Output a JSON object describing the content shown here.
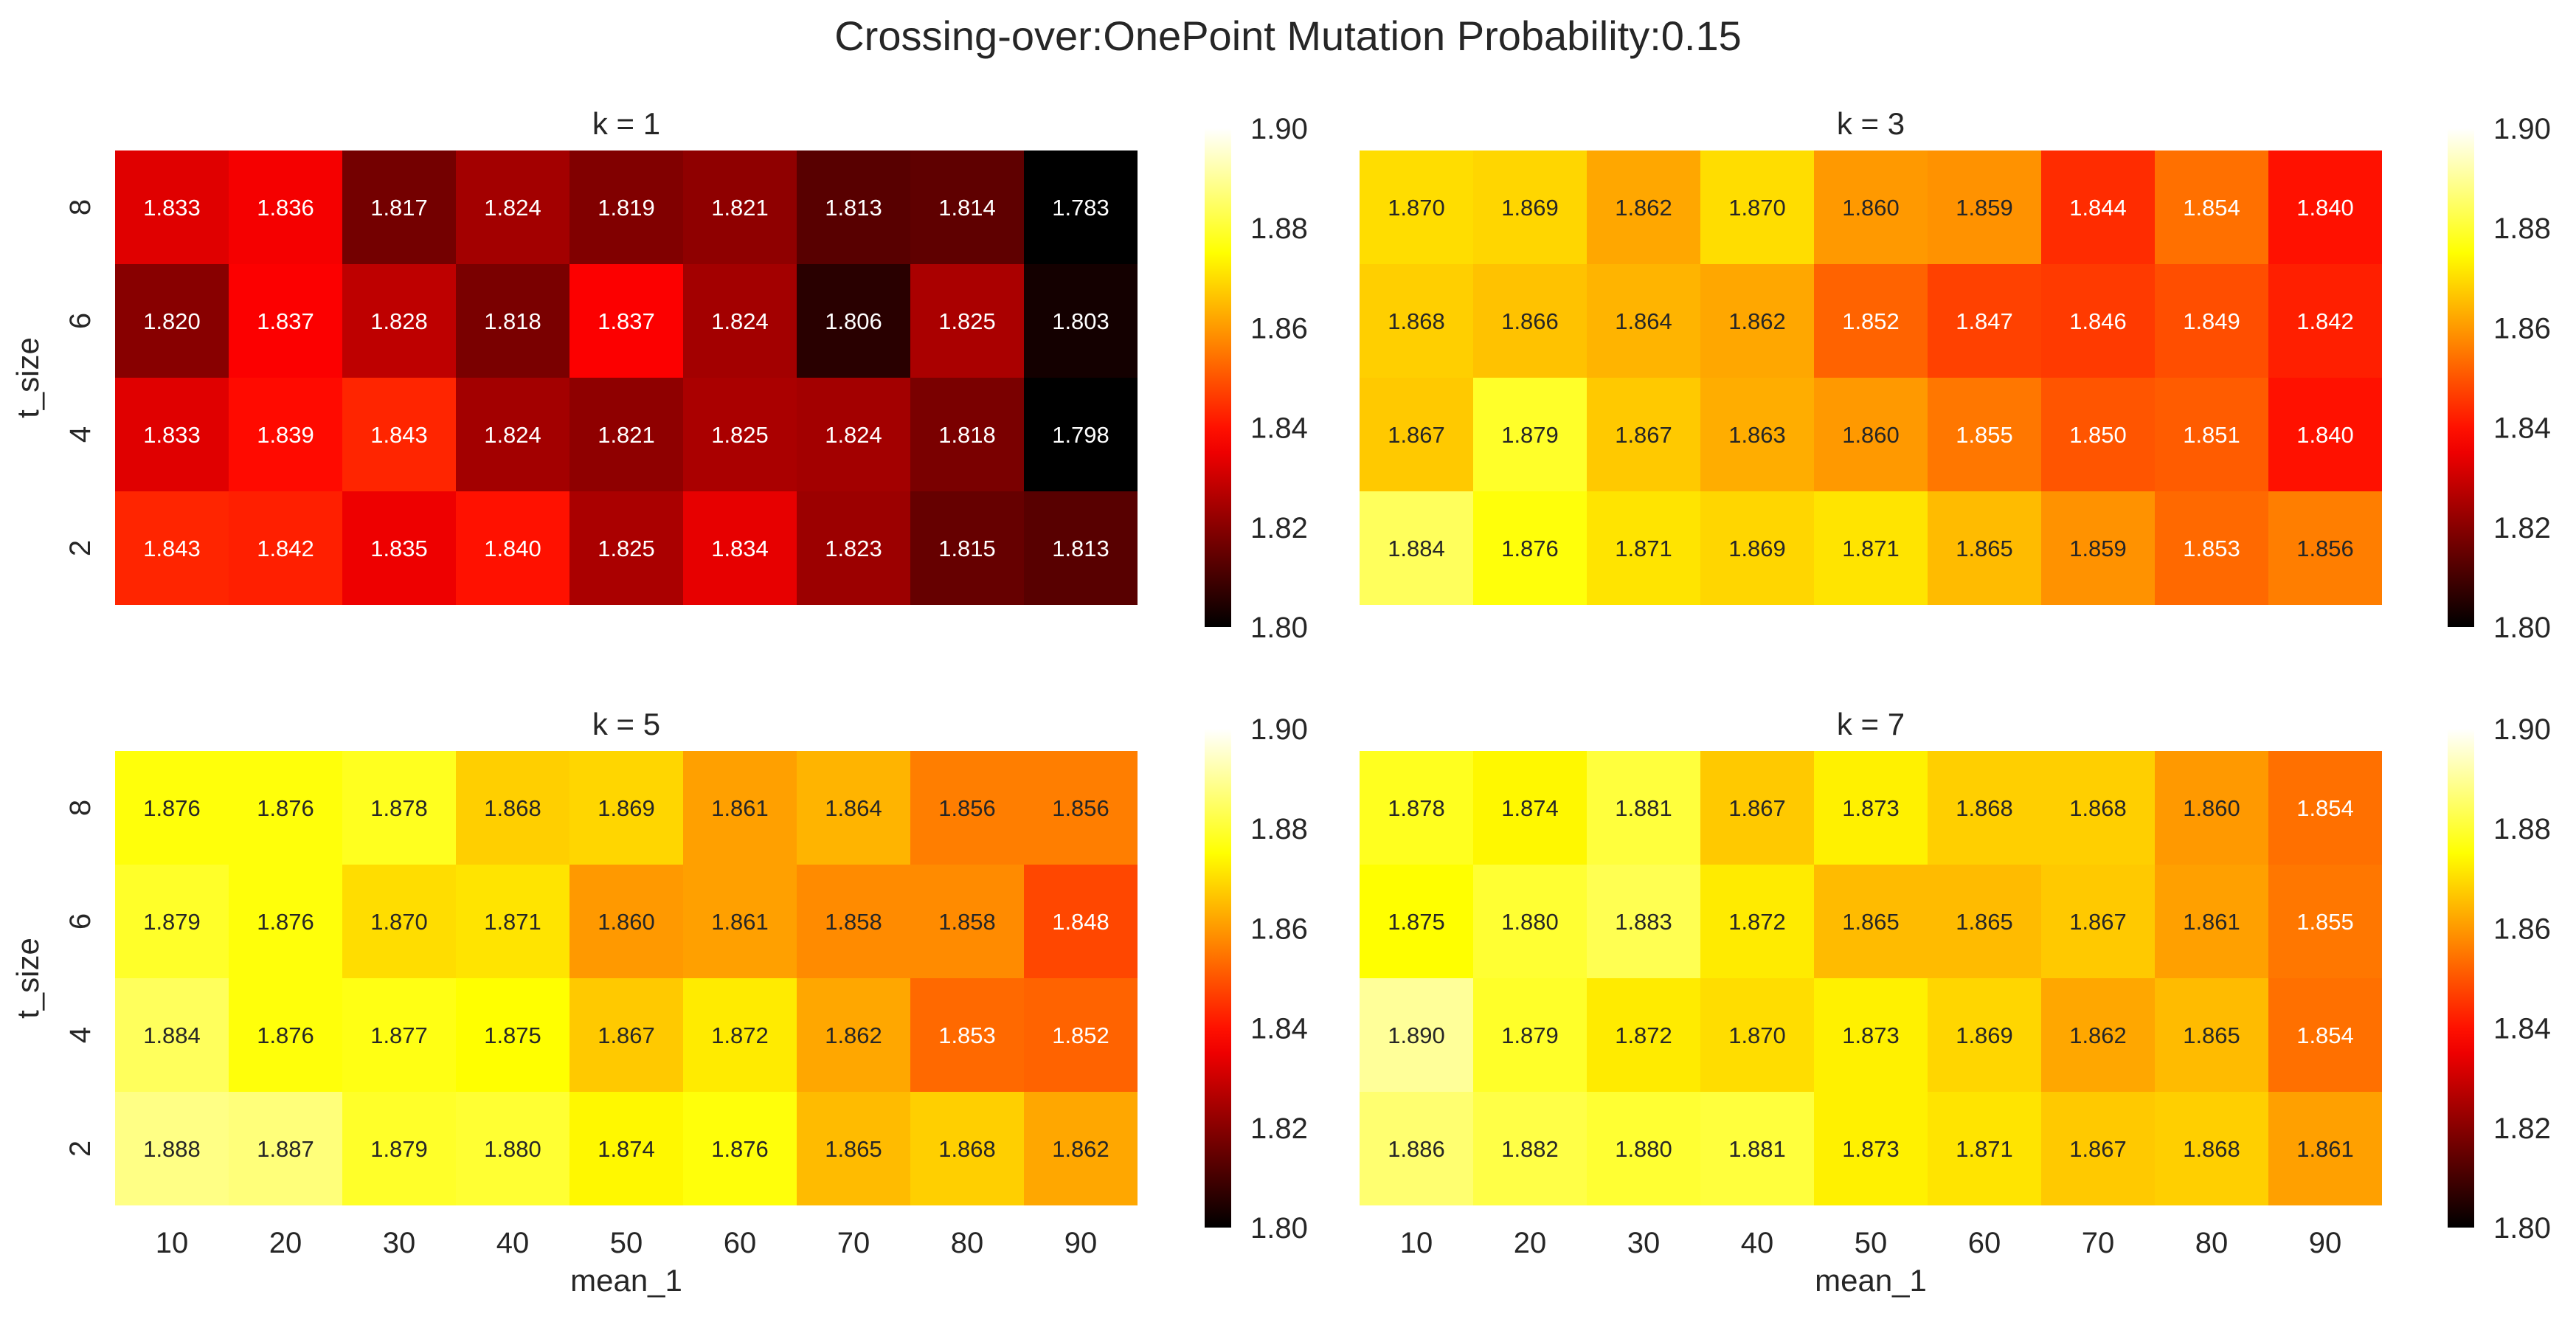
{
  "figure": {
    "title": "Crossing-over:OnePoint Mutation Probability:0.15"
  },
  "colormap": {
    "name": "hot",
    "stops": [
      "#000000",
      "#ff0000",
      "#ffff00",
      "#ffffff"
    ]
  },
  "chart_data": [
    {
      "type": "heatmap",
      "title": "k = 1",
      "xlabel": "",
      "ylabel": "t_size",
      "x_categories": [
        "10",
        "20",
        "30",
        "40",
        "50",
        "60",
        "70",
        "80",
        "90"
      ],
      "y_categories": [
        "8",
        "6",
        "4",
        "2"
      ],
      "values": [
        [
          1.833,
          1.836,
          1.817,
          1.824,
          1.819,
          1.821,
          1.813,
          1.814,
          1.783
        ],
        [
          1.82,
          1.837,
          1.828,
          1.818,
          1.837,
          1.824,
          1.806,
          1.825,
          1.803
        ],
        [
          1.833,
          1.839,
          1.843,
          1.824,
          1.821,
          1.825,
          1.824,
          1.818,
          1.798
        ],
        [
          1.843,
          1.842,
          1.835,
          1.84,
          1.825,
          1.834,
          1.823,
          1.815,
          1.813
        ]
      ],
      "vmin": 1.8,
      "vmax": 1.9,
      "colorbar_ticks": [
        "1.80",
        "1.82",
        "1.84",
        "1.86",
        "1.88",
        "1.90"
      ],
      "show_xticks": false
    },
    {
      "type": "heatmap",
      "title": "k = 3",
      "xlabel": "",
      "ylabel": "",
      "x_categories": [
        "10",
        "20",
        "30",
        "40",
        "50",
        "60",
        "70",
        "80",
        "90"
      ],
      "y_categories": [
        "8",
        "6",
        "4",
        "2"
      ],
      "values": [
        [
          1.87,
          1.869,
          1.862,
          1.87,
          1.86,
          1.859,
          1.844,
          1.854,
          1.84
        ],
        [
          1.868,
          1.866,
          1.864,
          1.862,
          1.852,
          1.847,
          1.846,
          1.849,
          1.842
        ],
        [
          1.867,
          1.879,
          1.867,
          1.863,
          1.86,
          1.855,
          1.85,
          1.851,
          1.84
        ],
        [
          1.884,
          1.876,
          1.871,
          1.869,
          1.871,
          1.865,
          1.859,
          1.853,
          1.856
        ]
      ],
      "vmin": 1.8,
      "vmax": 1.9,
      "colorbar_ticks": [
        "1.80",
        "1.82",
        "1.84",
        "1.86",
        "1.88",
        "1.90"
      ],
      "show_xticks": false
    },
    {
      "type": "heatmap",
      "title": "k = 5",
      "xlabel": "mean_1",
      "ylabel": "t_size",
      "x_categories": [
        "10",
        "20",
        "30",
        "40",
        "50",
        "60",
        "70",
        "80",
        "90"
      ],
      "y_categories": [
        "8",
        "6",
        "4",
        "2"
      ],
      "values": [
        [
          1.876,
          1.876,
          1.878,
          1.868,
          1.869,
          1.861,
          1.864,
          1.856,
          1.856
        ],
        [
          1.879,
          1.876,
          1.87,
          1.871,
          1.86,
          1.861,
          1.858,
          1.858,
          1.848
        ],
        [
          1.884,
          1.876,
          1.877,
          1.875,
          1.867,
          1.872,
          1.862,
          1.853,
          1.852
        ],
        [
          1.888,
          1.887,
          1.879,
          1.88,
          1.874,
          1.876,
          1.865,
          1.868,
          1.862
        ]
      ],
      "vmin": 1.8,
      "vmax": 1.9,
      "colorbar_ticks": [
        "1.80",
        "1.82",
        "1.84",
        "1.86",
        "1.88",
        "1.90"
      ],
      "show_xticks": true
    },
    {
      "type": "heatmap",
      "title": "k = 7",
      "xlabel": "mean_1",
      "ylabel": "",
      "x_categories": [
        "10",
        "20",
        "30",
        "40",
        "50",
        "60",
        "70",
        "80",
        "90"
      ],
      "y_categories": [
        "8",
        "6",
        "4",
        "2"
      ],
      "values": [
        [
          1.878,
          1.874,
          1.881,
          1.867,
          1.873,
          1.868,
          1.868,
          1.86,
          1.854
        ],
        [
          1.875,
          1.88,
          1.883,
          1.872,
          1.865,
          1.865,
          1.867,
          1.861,
          1.855
        ],
        [
          1.89,
          1.879,
          1.872,
          1.87,
          1.873,
          1.869,
          1.862,
          1.865,
          1.854
        ],
        [
          1.886,
          1.882,
          1.88,
          1.881,
          1.873,
          1.871,
          1.867,
          1.868,
          1.861
        ]
      ],
      "vmin": 1.8,
      "vmax": 1.9,
      "colorbar_ticks": [
        "1.80",
        "1.82",
        "1.84",
        "1.86",
        "1.88",
        "1.90"
      ],
      "show_xticks": true
    }
  ]
}
